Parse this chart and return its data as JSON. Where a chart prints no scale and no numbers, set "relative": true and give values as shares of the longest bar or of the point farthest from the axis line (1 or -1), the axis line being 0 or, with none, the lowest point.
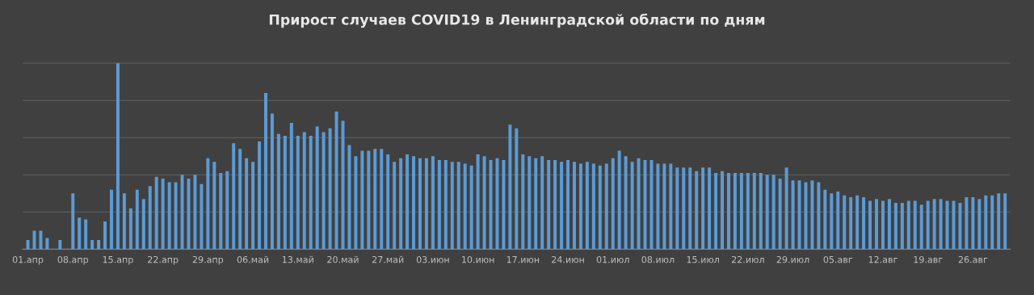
{
  "chart_data": {
    "type": "bar",
    "title": "Прирост случаев COVID19 в Ленинградской области по дням",
    "relative": true,
    "grid": "y",
    "color": "#5b9bd5",
    "categories": [
      "01.апр",
      null,
      null,
      null,
      null,
      null,
      null,
      "08.апр",
      null,
      null,
      null,
      null,
      null,
      null,
      "15.апр",
      null,
      null,
      null,
      null,
      null,
      null,
      "22.апр",
      null,
      null,
      null,
      null,
      null,
      null,
      "29.апр",
      null,
      null,
      null,
      null,
      null,
      null,
      "06.май",
      null,
      null,
      null,
      null,
      null,
      null,
      "13.май",
      null,
      null,
      null,
      null,
      null,
      null,
      "20.май",
      null,
      null,
      null,
      null,
      null,
      null,
      "27.май",
      null,
      null,
      null,
      null,
      null,
      null,
      "03.июн",
      null,
      null,
      null,
      null,
      null,
      null,
      "10.июн",
      null,
      null,
      null,
      null,
      null,
      null,
      "17.июн",
      null,
      null,
      null,
      null,
      null,
      null,
      "24.июн",
      null,
      null,
      null,
      null,
      null,
      null,
      "01.июл",
      null,
      null,
      null,
      null,
      null,
      null,
      "08.июл",
      null,
      null,
      null,
      null,
      null,
      null,
      "15.июл",
      null,
      null,
      null,
      null,
      null,
      null,
      "22.июл",
      null,
      null,
      null,
      null,
      null,
      null,
      "29.июл",
      null,
      null,
      null,
      null,
      null,
      null,
      "05.авг",
      null,
      null,
      null,
      null,
      null,
      null,
      "12.авг",
      null,
      null,
      null,
      null,
      null,
      null,
      "19.авг",
      null,
      null,
      null,
      null,
      null,
      null,
      "26.авг",
      null,
      null,
      null,
      null,
      null
    ],
    "values": [
      0.05,
      0.1,
      0.1,
      0.06,
      0,
      0.05,
      0,
      0.3,
      0.17,
      0.16,
      0.05,
      0.05,
      0.15,
      0.32,
      1,
      0.3,
      0.22,
      0.32,
      0.27,
      0.34,
      0.39,
      0.38,
      0.36,
      0.36,
      0.4,
      0.38,
      0.4,
      0.35,
      0.49,
      0.47,
      0.41,
      0.42,
      0.57,
      0.54,
      0.49,
      0.47,
      0.58,
      0.84,
      0.73,
      0.62,
      0.61,
      0.68,
      0.61,
      0.63,
      0.61,
      0.66,
      0.63,
      0.65,
      0.74,
      0.69,
      0.56,
      0.5,
      0.53,
      0.53,
      0.54,
      0.54,
      0.51,
      0.47,
      0.49,
      0.51,
      0.5,
      0.49,
      0.49,
      0.5,
      0.48,
      0.48,
      0.47,
      0.47,
      0.46,
      0.45,
      0.51,
      0.5,
      0.48,
      0.49,
      0.48,
      0.67,
      0.65,
      0.51,
      0.5,
      0.49,
      0.5,
      0.48,
      0.48,
      0.47,
      0.48,
      0.47,
      0.46,
      0.47,
      0.46,
      0.45,
      0.46,
      0.49,
      0.53,
      0.5,
      0.47,
      0.49,
      0.48,
      0.48,
      0.46,
      0.46,
      0.46,
      0.44,
      0.44,
      0.44,
      0.42,
      0.44,
      0.44,
      0.41,
      0.42,
      0.41,
      0.41,
      0.41,
      0.41,
      0.41,
      0.41,
      0.4,
      0.4,
      0.38,
      0.44,
      0.37,
      0.37,
      0.36,
      0.37,
      0.36,
      0.32,
      0.3,
      0.31,
      0.29,
      0.28,
      0.29,
      0.28,
      0.26,
      0.27,
      0.26,
      0.27,
      0.25,
      0.25,
      0.26,
      0.26,
      0.24,
      0.26,
      0.27,
      0.27,
      0.26,
      0.26,
      0.25,
      0.28,
      0.28,
      0.27,
      0.29,
      0.29,
      0.3,
      0.3
    ]
  }
}
